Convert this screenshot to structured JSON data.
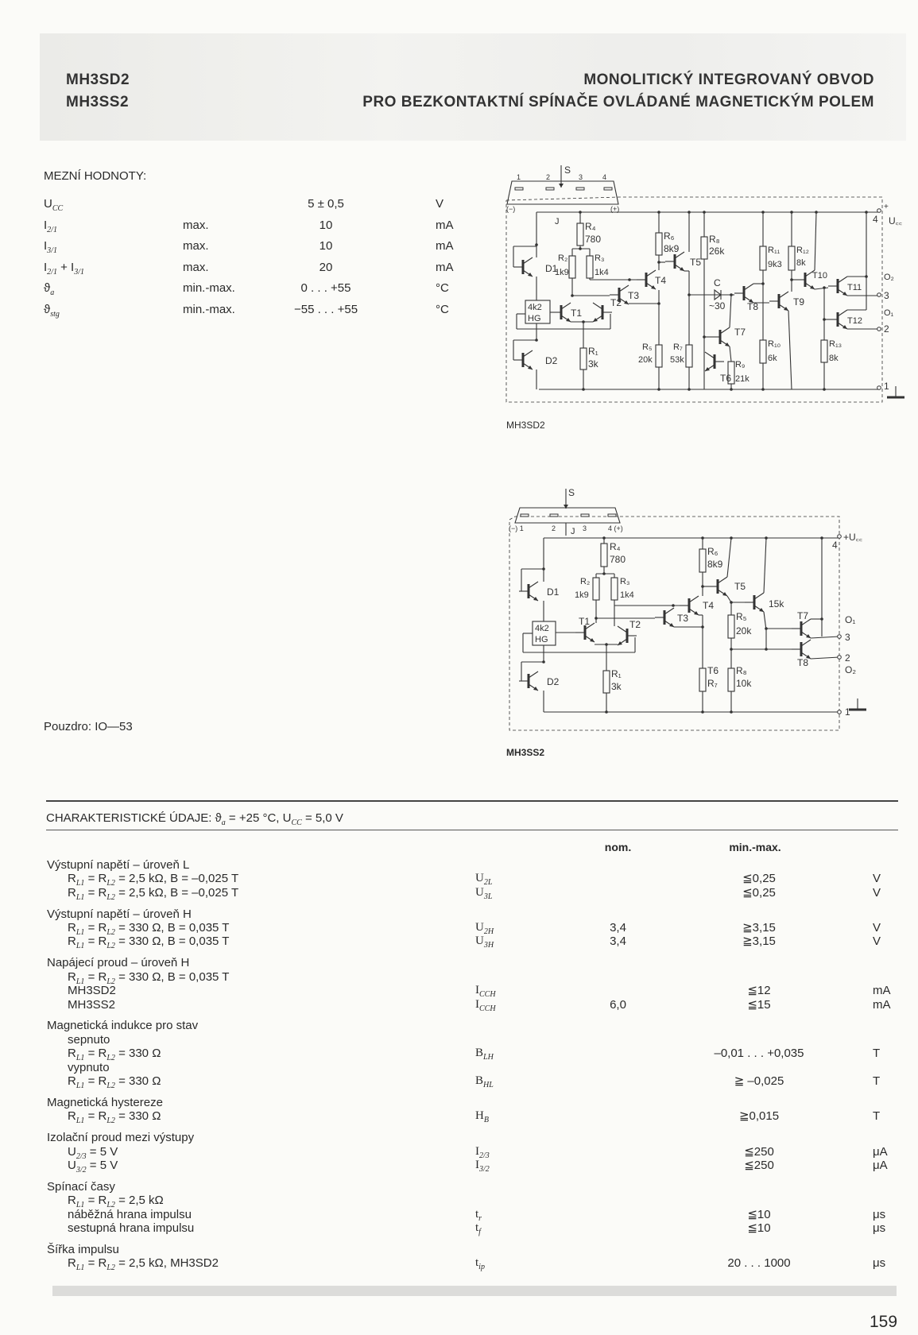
{
  "header": {
    "models": [
      "MH3SD2",
      "MH3SS2"
    ],
    "title_lines": [
      "MONOLITICKÝ INTEGROVANÝ OBVOD",
      "PRO BEZKONTAKTNÍ SPÍNAČE OVLÁDANÉ MAGNETICKÝM POLEM"
    ]
  },
  "limits": {
    "title": "MEZNÍ HODNOTY:",
    "rows": [
      {
        "param": "U_{CC}",
        "qual": "",
        "value": "5 ± 0,5",
        "unit": "V"
      },
      {
        "param": "I_{2/1}",
        "qual": "max.",
        "value": "10",
        "unit": "mA"
      },
      {
        "param": "I_{3/1}",
        "qual": "max.",
        "value": "10",
        "unit": "mA"
      },
      {
        "param": "I_{2/1} + I_{3/1}",
        "qual": "max.",
        "value": "20",
        "unit": "mA"
      },
      {
        "param": "ϑ_{a}",
        "qual": "min.-max.",
        "value": "0 . . . +55",
        "unit": "°C"
      },
      {
        "param": "ϑ_{stg}",
        "qual": "min.-max.",
        "value": "−55 . . . +55",
        "unit": "°C"
      }
    ]
  },
  "package": "Pouzdro:  IO—53",
  "schematics": [
    {
      "caption": "MH3SD2",
      "labels": [
        "S",
        "1",
        "2",
        "3",
        "4",
        "(−)",
        "(+)",
        "J",
        "R₄",
        "780",
        "R₂",
        "1k9",
        "R₃",
        "1k4",
        "D1",
        "D2",
        "4k2",
        "HG",
        "T1",
        "T2",
        "R₁",
        "3k",
        "T3",
        "T4",
        "R₆",
        "8k9",
        "T5",
        "R₅",
        "20k",
        "R₇",
        "53k",
        "R₈",
        "26k",
        "C",
        "~30",
        "T7",
        "T6",
        "R₉",
        "21k",
        "T8",
        "R₁₁",
        "9k3",
        "T9",
        "R₁₀",
        "6k",
        "R₁₂",
        "8k",
        "T10",
        "T11",
        "T12",
        "R₁₃",
        "8k",
        "4",
        "+",
        "U꜀꜀",
        "O₂",
        "3",
        "O₁",
        "2",
        "1"
      ]
    },
    {
      "caption": "MH3SS2",
      "labels": [
        "S",
        "(−) 1",
        "2",
        "J",
        "3",
        "4 (+)",
        "R₄",
        "780",
        "R₂",
        "1k9",
        "R₃",
        "1k4",
        "D1",
        "D2",
        "4k2",
        "HG",
        "T1",
        "T2",
        "R₁",
        "3k",
        "T3",
        "T4",
        "R₆",
        "8k9",
        "T5",
        "T6",
        "R₇",
        "15k",
        "R₅",
        "20k",
        "R₈",
        "10k",
        "T7",
        "T8",
        "4",
        "+U꜀꜀",
        "O₁",
        "3",
        "2",
        "O₂",
        "1"
      ]
    }
  ],
  "characteristics": {
    "title": "CHARAKTERISTICKÉ ÚDAJE: ϑ_{a} = +25 °C, U_{CC} = 5,0 V",
    "col_nom": "nom.",
    "col_minmax": "min.-max.",
    "groups": [
      {
        "lines": [
          {
            "label": "Výstupní napětí – úroveň L",
            "indent": 0
          },
          {
            "label": "R_{L1} = R_{L2} = 2,5 kΩ, B = –0,025 T",
            "indent": 1,
            "sym": "U_{2L}",
            "minmax": "≦0,25",
            "unit": "V"
          },
          {
            "label": "R_{L1} = R_{L2} = 2,5 kΩ, B = –0,025 T",
            "indent": 1,
            "sym": "U_{3L}",
            "minmax": "≦0,25",
            "unit": "V"
          }
        ]
      },
      {
        "lines": [
          {
            "label": "Výstupní napětí – úroveň H",
            "indent": 0
          },
          {
            "label": "R_{L1} = R_{L2} = 330 Ω, B = 0,035 T",
            "indent": 1,
            "sym": "U_{2H}",
            "nom": "3,4",
            "minmax": "≧3,15",
            "unit": "V"
          },
          {
            "label": "R_{L1} = R_{L2} = 330 Ω, B = 0,035 T",
            "indent": 1,
            "sym": "U_{3H}",
            "nom": "3,4",
            "minmax": "≧3,15",
            "unit": "V"
          }
        ]
      },
      {
        "lines": [
          {
            "label": "Napájecí proud – úroveň H",
            "indent": 0
          },
          {
            "label": "R_{L1} = R_{L2} = 330 Ω, B = 0,035 T",
            "indent": 1
          },
          {
            "label": "MH3SD2",
            "indent": 1,
            "sym": "I_{CCH}",
            "minmax": "≦12",
            "unit": "mA"
          },
          {
            "label": "MH3SS2",
            "indent": 1,
            "sym": "I_{CCH}",
            "nom": "6,0",
            "minmax": "≦15",
            "unit": "mA"
          }
        ]
      },
      {
        "lines": [
          {
            "label": "Magnetická indukce pro stav",
            "indent": 0
          },
          {
            "label": "sepnuto",
            "indent": 1
          },
          {
            "label": "R_{L1} = R_{L2} = 330 Ω",
            "indent": 1,
            "sym": "B_{LH}",
            "minmax": "–0,01 . . . +0,035",
            "unit": "T"
          },
          {
            "label": "vypnuto",
            "indent": 1
          },
          {
            "label": "R_{L1} = R_{L2} = 330 Ω",
            "indent": 1,
            "sym": "B_{HL}",
            "minmax": "≧ –0,025",
            "unit": "T"
          }
        ]
      },
      {
        "lines": [
          {
            "label": "Magnetická hystereze",
            "indent": 0
          },
          {
            "label": "R_{L1} = R_{L2} = 330 Ω",
            "indent": 1,
            "sym": "H_{B}",
            "minmax": "≧0,015",
            "unit": "T"
          }
        ]
      },
      {
        "lines": [
          {
            "label": "Izolační proud mezi výstupy",
            "indent": 0
          },
          {
            "label": "U_{2/3} = 5 V",
            "indent": 1,
            "sym": "I_{2/3}",
            "minmax": "≦250",
            "unit": "μA"
          },
          {
            "label": "U_{3/2} = 5 V",
            "indent": 1,
            "sym": "I_{3/2}",
            "minmax": "≦250",
            "unit": "μA"
          }
        ]
      },
      {
        "lines": [
          {
            "label": "Spínací časy",
            "indent": 0
          },
          {
            "label": "R_{L1} = R_{L2} = 2,5 kΩ",
            "indent": 1
          },
          {
            "label": "náběžná hrana impulsu",
            "indent": 1,
            "sym": "t_{r}",
            "minmax": "≦10",
            "unit": "μs"
          },
          {
            "label": "sestupná hrana impulsu",
            "indent": 1,
            "sym": "t_{f}",
            "minmax": "≦10",
            "unit": "μs"
          }
        ]
      },
      {
        "lines": [
          {
            "label": "Šířka impulsu",
            "indent": 0
          },
          {
            "label": "R_{L1} = R_{L2} = 2,5 kΩ, MH3SD2",
            "indent": 1,
            "sym": "t_{ip}",
            "minmax": "20 . . . 1000",
            "unit": "μs"
          }
        ]
      }
    ]
  },
  "page_number": "159"
}
